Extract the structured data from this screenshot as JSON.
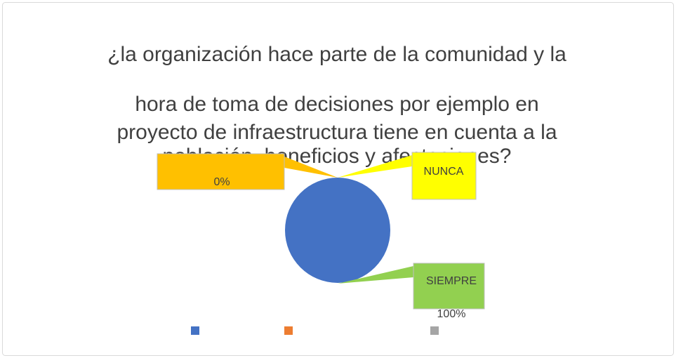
{
  "chart_data": {
    "type": "pie",
    "title_lines": [
      "¿la organización hace parte de la comunidad y la",
      "hora de toma de decisiones por ejemplo en",
      "proyecto de infraestructura tiene en cuenta a la",
      "población, beneficios y afectaciones?"
    ],
    "categories": [
      "SIEMPRE",
      null,
      "NUNCA"
    ],
    "values": [
      100,
      0,
      0
    ],
    "value_labels": [
      "100%",
      "0%",
      null
    ],
    "colors": [
      "#4472c4",
      "#ed7d31",
      "#a5a5a5"
    ],
    "label_colors": [
      "#92d050",
      "#ffc000",
      "#ffff00"
    ],
    "legend": "bottom"
  }
}
